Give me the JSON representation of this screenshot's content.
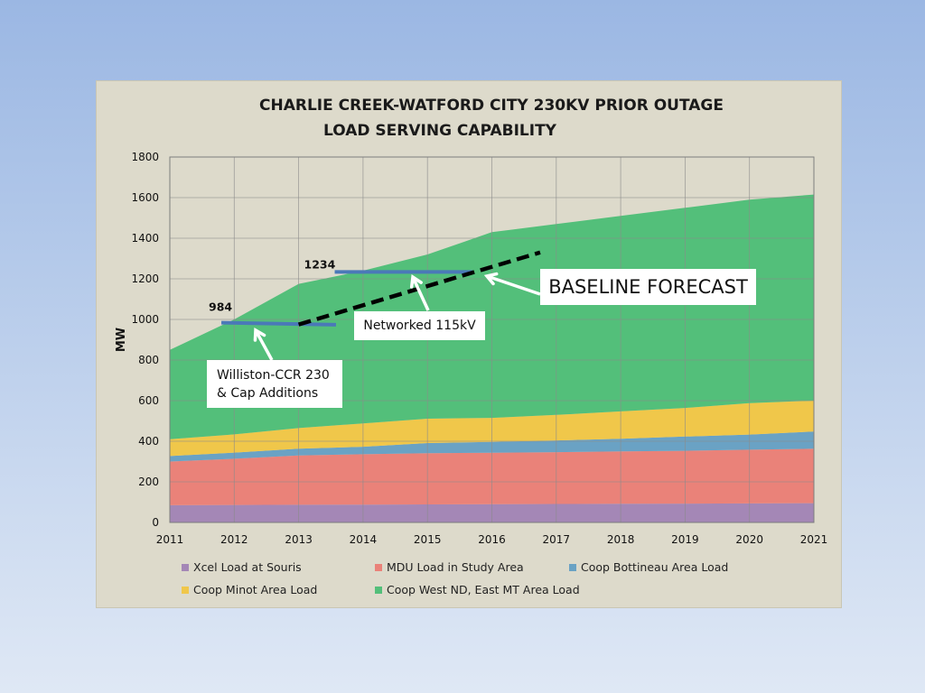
{
  "slide": {
    "callouts": {
      "baseline": "BASELINE  FORECAST",
      "networked": "Networked 115kV",
      "williston_line1": "Williston-CCR 230",
      "williston_line2": "& Cap Additions"
    },
    "level_labels": {
      "first": "984",
      "second": "1234"
    }
  },
  "chart_data": {
    "type": "area",
    "stacked": true,
    "title": "CHARLIE CREEK-WATFORD CITY 230KV PRIOR OUTAGE",
    "subtitle": "LOAD SERVING CAPABILITY",
    "xlabel": "",
    "ylabel": "MW",
    "x": [
      "2011",
      "2012",
      "2013",
      "2014",
      "2015",
      "2016",
      "2017",
      "2018",
      "2019",
      "2020",
      "2021"
    ],
    "ylim": [
      0,
      1800
    ],
    "yticks": [
      "0",
      "200",
      "400",
      "600",
      "800",
      "1000",
      "1200",
      "1400",
      "1600",
      "1800"
    ],
    "grid": true,
    "legend_position": "bottom",
    "series": [
      {
        "name": "Xcel Load at Souris",
        "color": "#a487b6",
        "values": [
          85,
          86,
          87,
          88,
          89,
          90,
          91,
          92,
          93,
          94,
          95
        ]
      },
      {
        "name": "MDU Load in Study Area",
        "color": "#ea8279",
        "values": [
          215,
          228,
          243,
          248,
          252,
          253,
          255,
          258,
          260,
          264,
          268
        ]
      },
      {
        "name": "Coop Bottineau Area Load",
        "color": "#6aa2c4",
        "values": [
          27,
          30,
          33,
          37,
          50,
          54,
          58,
          62,
          70,
          75,
          85
        ]
      },
      {
        "name": "Coop Minot Area Load",
        "color": "#f0c74a",
        "values": [
          83,
          90,
          102,
          115,
          120,
          118,
          126,
          135,
          141,
          155,
          152
        ]
      },
      {
        "name": "Coop West ND, East MT Area Load",
        "color": "#53bf7a",
        "values": [
          440,
          566,
          710,
          752,
          809,
          915,
          940,
          963,
          986,
          1002,
          1015
        ]
      }
    ],
    "annotations": [
      {
        "label": "984",
        "value": 984
      },
      {
        "label": "1234",
        "value": 1234
      }
    ]
  },
  "colors": {
    "baseline_line": "#000000",
    "capability_line": "#4a79b8",
    "panel_bg": "#dddacb"
  }
}
